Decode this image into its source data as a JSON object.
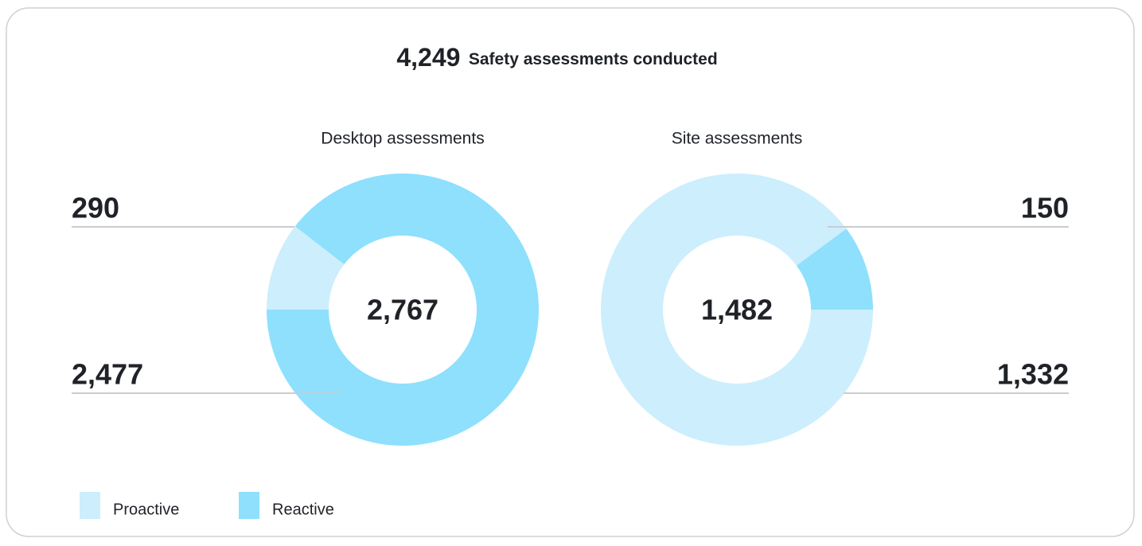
{
  "header": {
    "value": "4,249",
    "text": "Safety assessments conducted"
  },
  "chart_data": [
    {
      "type": "pie",
      "title": "Desktop assessments",
      "categories": [
        "Proactive",
        "Reactive"
      ],
      "values": [
        290,
        2477
      ],
      "value_labels": [
        "290",
        "2,477"
      ],
      "colors": [
        "#cdeefc",
        "#8ee0fd"
      ],
      "center_label": "2,767",
      "start_angle": 270,
      "label_side": "left",
      "legend": true
    },
    {
      "type": "pie",
      "title": "Site assessments",
      "categories": [
        "Proactive",
        "Reactive"
      ],
      "values": [
        1332,
        150
      ],
      "value_labels": [
        "1,332",
        "150"
      ],
      "colors": [
        "#cdeefc",
        "#8ee0fd"
      ],
      "center_label": "1,482",
      "start_angle": 90,
      "label_side": "right",
      "legend": false
    }
  ]
}
